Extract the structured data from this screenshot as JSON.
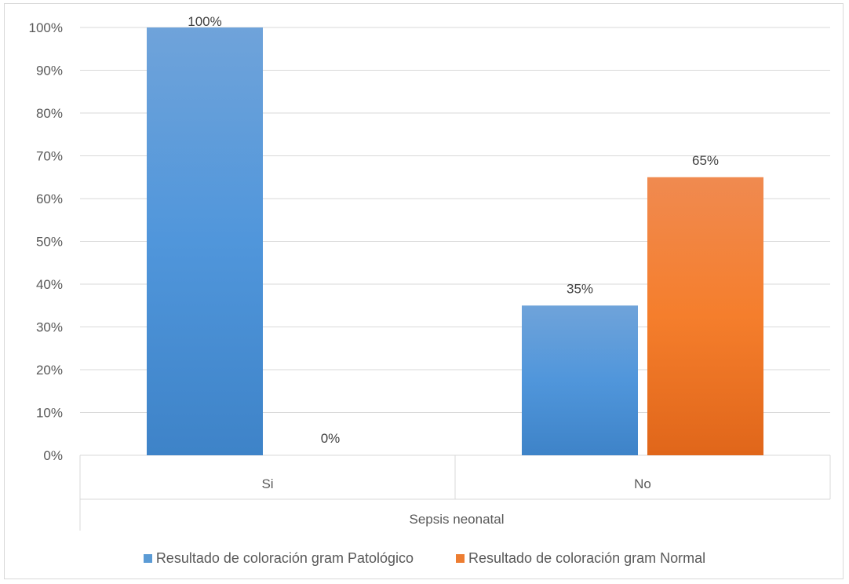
{
  "chart_data": {
    "type": "bar",
    "title": "",
    "xlabel": "Sepsis neonatal",
    "ylabel": "",
    "categories": [
      "Si",
      "No"
    ],
    "series": [
      {
        "name": "Resultado de coloración gram Patológico",
        "values": [
          100,
          35
        ],
        "labels": [
          "100%",
          "35%"
        ],
        "color": "#5b9bd5"
      },
      {
        "name": "Resultado de coloración gram Normal",
        "values": [
          0,
          65
        ],
        "labels": [
          "0%",
          "65%"
        ],
        "color": "#ed7d31"
      }
    ],
    "ylim": [
      0,
      100
    ],
    "yticks": [
      0,
      10,
      20,
      30,
      40,
      50,
      60,
      70,
      80,
      90,
      100
    ],
    "ytick_labels": [
      "0%",
      "10%",
      "20%",
      "30%",
      "40%",
      "50%",
      "60%",
      "70%",
      "80%",
      "90%",
      "100%"
    ],
    "grid": true,
    "legend": "bottom"
  }
}
